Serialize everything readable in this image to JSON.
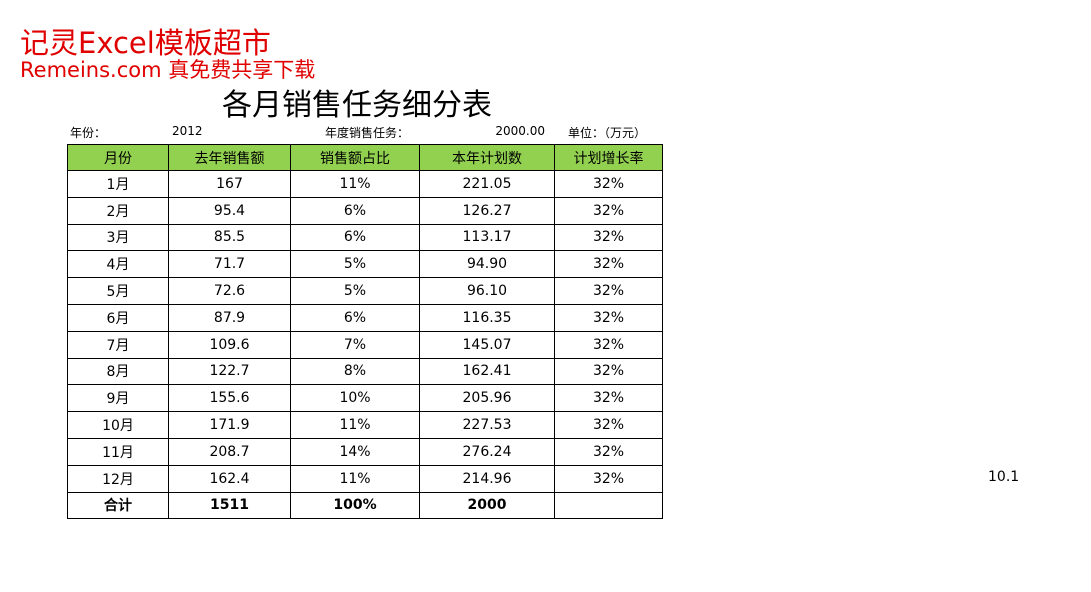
{
  "watermark": {
    "line1": "记灵Excel模板超市",
    "line2": "Remeins.com 真免费共享下载"
  },
  "title": "各月销售任务细分表",
  "info": {
    "year_label": "年份：",
    "year": "2012",
    "task_label": "年度销售任务：",
    "task": "2000.00",
    "unit": "单位：（万元）"
  },
  "table": {
    "header": [
      "月份",
      "去年销售额",
      "销售额占比",
      "本年计划数",
      "计划增长率"
    ],
    "rows": [
      [
        "1月",
        "167",
        "11%",
        "221.05",
        "32%"
      ],
      [
        "2月",
        "95.4",
        "6%",
        "126.27",
        "32%"
      ],
      [
        "3月",
        "85.5",
        "6%",
        "113.17",
        "32%"
      ],
      [
        "4月",
        "71.7",
        "5%",
        "94.90",
        "32%"
      ],
      [
        "5月",
        "72.6",
        "5%",
        "96.10",
        "32%"
      ],
      [
        "6月",
        "87.9",
        "6%",
        "116.35",
        "32%"
      ],
      [
        "7月",
        "109.6",
        "7%",
        "145.07",
        "32%"
      ],
      [
        "8月",
        "122.7",
        "8%",
        "162.41",
        "32%"
      ],
      [
        "9月",
        "155.6",
        "10%",
        "205.96",
        "32%"
      ],
      [
        "10月",
        "171.9",
        "11%",
        "227.53",
        "32%"
      ],
      [
        "11月",
        "208.7",
        "14%",
        "276.24",
        "32%"
      ],
      [
        "12月",
        "162.4",
        "11%",
        "214.96",
        "32%"
      ]
    ],
    "total": [
      "合计",
      "1511",
      "100%",
      "2000"
    ]
  },
  "note": "10.1"
}
